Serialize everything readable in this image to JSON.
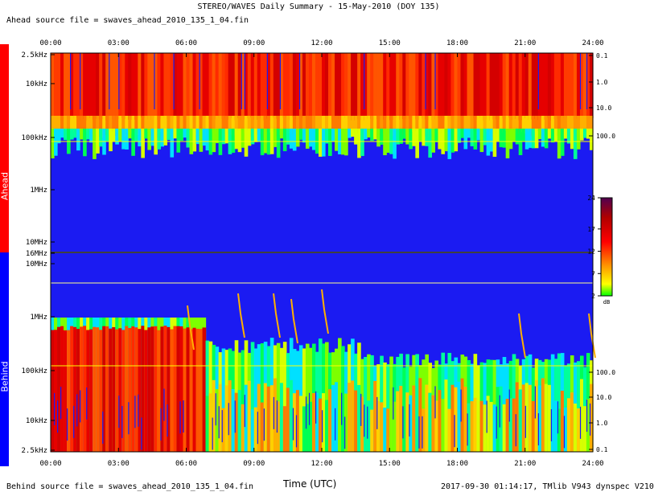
{
  "header": {
    "title": "STEREO/WAVES Daily Summary - 15-May-2010 (DOY 135)",
    "ahead_file": "Ahead source file = swaves_ahead_2010_135_1_04.fin"
  },
  "footer": {
    "behind_file": "Behind source file = swaves_ahead_2010_135_1_04.fin",
    "xaxis_title": "Time (UTC)",
    "stamp": "2017-09-30 01:14:17, TMlib V943 dynspec V210"
  },
  "side_labels": {
    "ahead": "Ahead",
    "behind": "Behind"
  },
  "colors": {
    "ahead_band": "#ff0000",
    "behind_band": "#0000ff",
    "background_blue": "#1b1bf2"
  },
  "chart_data": [
    {
      "type": "heatmap",
      "name": "Ahead",
      "x_ticks": [
        "00:00",
        "03:00",
        "06:00",
        "09:00",
        "12:00",
        "15:00",
        "18:00",
        "21:00",
        "24:00"
      ],
      "y_ticks_left": [
        "2.5kHz",
        "10kHz",
        "100kHz",
        "1MHz",
        "10MHz",
        "16MHz"
      ],
      "y_ticks_right": [
        "0.1",
        "1.0",
        "10.0",
        "100.0"
      ]
    },
    {
      "type": "heatmap",
      "name": "Behind",
      "x_ticks": [
        "00:00",
        "03:00",
        "06:00",
        "09:00",
        "12:00",
        "15:00",
        "18:00",
        "21:00",
        "24:00"
      ],
      "y_ticks_left": [
        "10MHz",
        "1MHz",
        "100kHz",
        "10kHz",
        "2.5kHz"
      ],
      "y_ticks_right": [
        "100.0",
        "10.0",
        "1.0",
        "0.1"
      ]
    },
    {
      "type": "colorbar",
      "ticks": [
        "24",
        "17",
        "12",
        "7",
        "2"
      ],
      "unit": "dB",
      "range": [
        2,
        24
      ]
    }
  ]
}
